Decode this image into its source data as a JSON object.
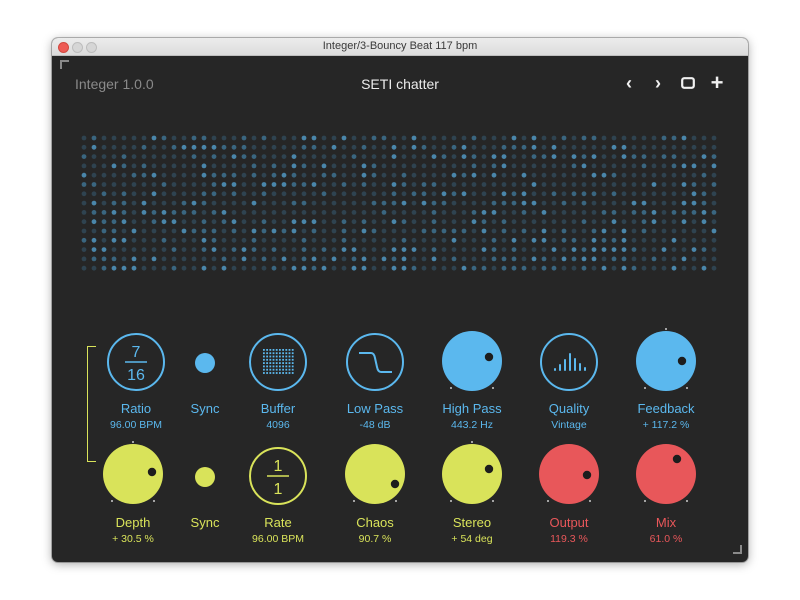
{
  "window": {
    "title": "Integer/3-Bouncy Beat 117 bpm"
  },
  "header": {
    "version": "Integer 1.0.0",
    "preset": "SETI chatter",
    "prev_label": "‹",
    "next_label": "›",
    "plus_label": "+"
  },
  "colors": {
    "blue": "#5bb8ee",
    "yellow": "#d9e35a",
    "red": "#e8575a",
    "background": "#262626"
  },
  "row1": {
    "ratio": {
      "label": "Ratio",
      "value": "96.00 BPM",
      "num": "7",
      "den": "16"
    },
    "sync": {
      "label": "Sync"
    },
    "buffer": {
      "label": "Buffer",
      "value": "4096"
    },
    "lowpass": {
      "label": "Low Pass",
      "value": "-48 dB"
    },
    "highpass": {
      "label": "High Pass",
      "value": "443.2 Hz"
    },
    "quality": {
      "label": "Quality",
      "value": "Vintage"
    },
    "feedback": {
      "label": "Feedback",
      "value": "+ 117.2 %"
    }
  },
  "row2": {
    "depth": {
      "label": "Depth",
      "value": "+ 30.5 %"
    },
    "sync": {
      "label": "Sync"
    },
    "rate": {
      "label": "Rate",
      "value": "96.00 BPM",
      "num": "1",
      "den": "1"
    },
    "chaos": {
      "label": "Chaos",
      "value": "90.7 %"
    },
    "stereo": {
      "label": "Stereo",
      "value": "+ 54 deg"
    },
    "output": {
      "label": "Output",
      "value": "119.3 %"
    },
    "mix": {
      "label": "Mix",
      "value": "61.0 %"
    }
  }
}
